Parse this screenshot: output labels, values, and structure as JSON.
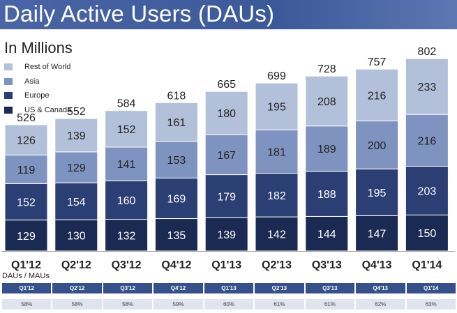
{
  "title": "Daily Active Users (DAUs)",
  "subtitle": "In Millions",
  "legend": [
    {
      "label": "Rest of World",
      "color": "#b3c0d9"
    },
    {
      "label": "Asia",
      "color": "#7f93c0"
    },
    {
      "label": "Europe",
      "color": "#2b3f74"
    },
    {
      "label": "US & Canada",
      "color": "#1a2a52"
    }
  ],
  "chart_data": {
    "type": "bar",
    "stacked": true,
    "title": "Daily Active Users (DAUs)",
    "ylabel": "In Millions",
    "categories": [
      "Q1'12",
      "Q2'12",
      "Q3'12",
      "Q4'12",
      "Q1'13",
      "Q2'13",
      "Q3'13",
      "Q4'13",
      "Q1'14"
    ],
    "series": [
      {
        "name": "US & Canada",
        "color": "#1a2a52",
        "values": [
          129,
          130,
          132,
          135,
          139,
          142,
          144,
          147,
          150
        ]
      },
      {
        "name": "Europe",
        "color": "#2b3f74",
        "values": [
          152,
          154,
          160,
          169,
          179,
          182,
          188,
          195,
          203
        ]
      },
      {
        "name": "Asia",
        "color": "#7f93c0",
        "values": [
          119,
          129,
          141,
          153,
          167,
          181,
          189,
          200,
          216
        ]
      },
      {
        "name": "Rest of World",
        "color": "#b3c0d9",
        "values": [
          126,
          139,
          152,
          161,
          180,
          195,
          208,
          216,
          233
        ]
      }
    ],
    "totals": [
      526,
      552,
      584,
      618,
      665,
      699,
      728,
      757,
      802
    ],
    "ylim": [
      0,
      802
    ]
  },
  "ratio_table": {
    "label": "DAUs / MAUs",
    "quarters": [
      "Q1'12",
      "Q2'12",
      "Q3'12",
      "Q4'12",
      "Q1'13",
      "Q2'13",
      "Q3'13",
      "Q4'13",
      "Q1'14"
    ],
    "values": [
      "58%",
      "58%",
      "58%",
      "59%",
      "60%",
      "61%",
      "61%",
      "62%",
      "63%"
    ]
  }
}
